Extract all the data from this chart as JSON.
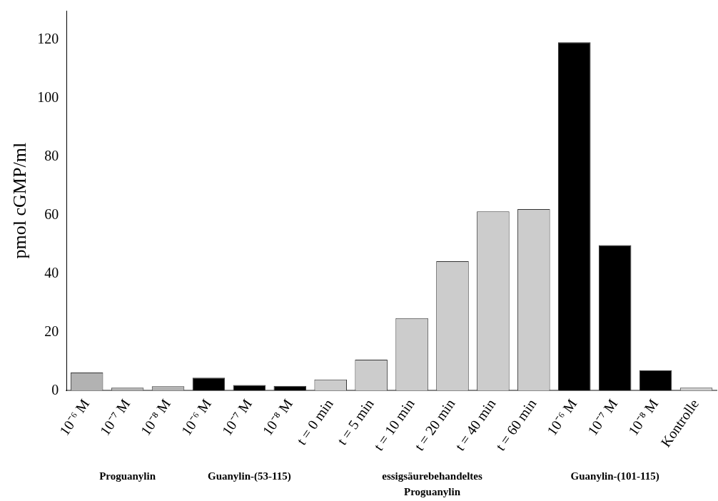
{
  "chart_data": {
    "type": "bar",
    "ylabel": "pmol cGMP/ml",
    "categories": [
      "10⁻⁶ M",
      "10⁻⁷ M",
      "10⁻⁸ M",
      "10⁻⁶ M",
      "10⁻⁷ M",
      "10⁻⁸ M",
      "t = 0 min",
      "t = 5 min",
      "t = 10 min",
      "t = 20 min",
      "t = 40 min",
      "t = 60 min",
      "10⁻⁶ M",
      "10⁻⁷ M",
      "10⁻⁸ M",
      "Kontrolle"
    ],
    "values": [
      6.2,
      1.0,
      1.5,
      4.4,
      1.9,
      1.6,
      3.8,
      10.6,
      24.8,
      44.3,
      61.3,
      62.1,
      119.2,
      49.8,
      7.0,
      1.0
    ],
    "colors": [
      "#b2b2b2",
      "#b2b2b2",
      "#b2b2b2",
      "#000000",
      "#000000",
      "#000000",
      "#cccccc",
      "#cccccc",
      "#cccccc",
      "#cccccc",
      "#cccccc",
      "#cccccc",
      "#000000",
      "#000000",
      "#000000",
      "#cccccc"
    ],
    "ylim": [
      0,
      130
    ],
    "yticks": [
      0,
      20,
      40,
      60,
      80,
      100,
      120
    ],
    "grid": false,
    "legend": false,
    "annotations": [
      "Proguanylin",
      "Guanylin-(53-115)",
      "essigsäurebehandeltes\nProguanylin",
      "Guanylin-(101-115)"
    ]
  }
}
